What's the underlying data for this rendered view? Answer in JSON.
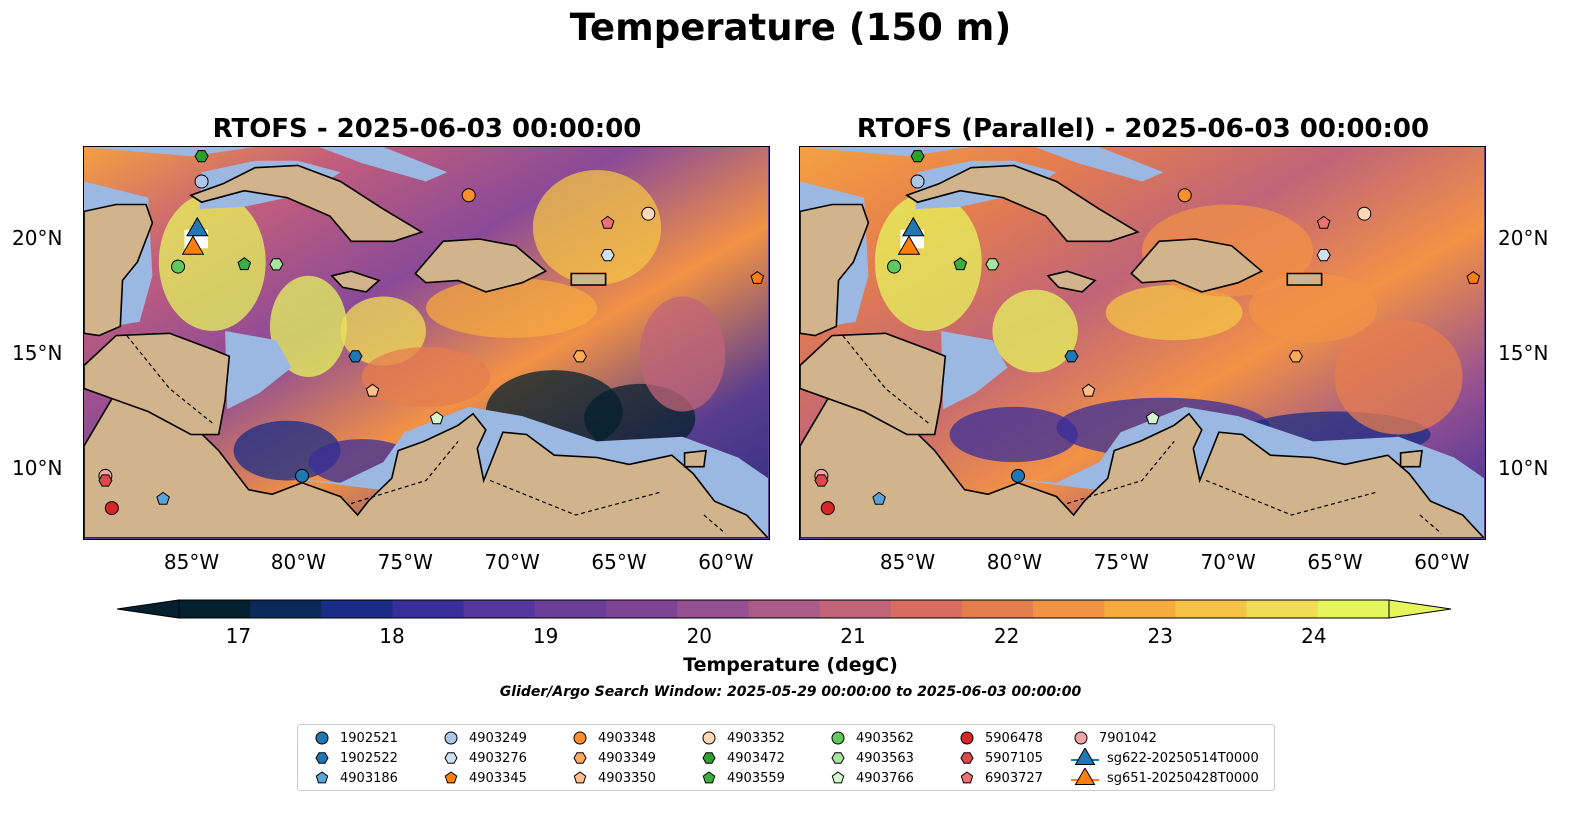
{
  "title": "Temperature (150 m)",
  "panels": [
    {
      "title": "RTOFS - 2025-06-03 00:00:00"
    },
    {
      "title": "RTOFS (Parallel) - 2025-06-03 00:00:00"
    }
  ],
  "map": {
    "lon_range": [
      -90,
      -58
    ],
    "lat_range": [
      7,
      24
    ],
    "x_ticks": [
      "85°W",
      "80°W",
      "75°W",
      "70°W",
      "65°W",
      "60°W"
    ],
    "y_ticks": [
      "20°N",
      "15°N",
      "10°N"
    ],
    "colors": {
      "land": "#d2b48c",
      "shallow": "#9bb8e2",
      "coast": "#000000"
    }
  },
  "colorbar": {
    "label": "Temperature (degC)",
    "ticks": [
      "17",
      "18",
      "19",
      "20",
      "21",
      "22",
      "23",
      "24"
    ],
    "range": [
      16.625,
      24.5
    ],
    "step": 0.5,
    "extend": "both",
    "colormap": "thermal"
  },
  "search_window": "Glider/Argo Search Window: 2025-05-29 00:00:00 to 2025-06-03 00:00:00",
  "legend": [
    {
      "label": "1902521",
      "marker": "circle",
      "color": "#1f77b4"
    },
    {
      "label": "1902522",
      "marker": "hexagon",
      "color": "#1f77b4"
    },
    {
      "label": "4903186",
      "marker": "pentagon",
      "color": "#5aa4d8"
    },
    {
      "label": "4903249",
      "marker": "circle",
      "color": "#aec7e8"
    },
    {
      "label": "4903276",
      "marker": "hexagon",
      "color": "#cfe0f5"
    },
    {
      "label": "4903345",
      "marker": "pentagon",
      "color": "#ff7f0e"
    },
    {
      "label": "4903348",
      "marker": "circle",
      "color": "#ff8f2a"
    },
    {
      "label": "4903349",
      "marker": "hexagon",
      "color": "#ffab5c"
    },
    {
      "label": "4903350",
      "marker": "pentagon",
      "color": "#ffc08a"
    },
    {
      "label": "4903352",
      "marker": "circle",
      "color": "#fdd9b5"
    },
    {
      "label": "4903472",
      "marker": "hexagon",
      "color": "#2ca02c"
    },
    {
      "label": "4903559",
      "marker": "pentagon",
      "color": "#3cb03c"
    },
    {
      "label": "4903562",
      "marker": "circle",
      "color": "#5ec95e"
    },
    {
      "label": "4903563",
      "marker": "hexagon",
      "color": "#a8e4a0"
    },
    {
      "label": "4903766",
      "marker": "pentagon",
      "color": "#d6f5d0"
    },
    {
      "label": "5906478",
      "marker": "circle",
      "color": "#d62728"
    },
    {
      "label": "5907105",
      "marker": "hexagon",
      "color": "#e04848"
    },
    {
      "label": "6903727",
      "marker": "pentagon",
      "color": "#f07070"
    },
    {
      "label": "7901042",
      "marker": "circle",
      "color": "#f4a6a6"
    },
    {
      "label": "sg622-20250514T0000",
      "marker": "triangle-line",
      "color": "#1f77b4"
    },
    {
      "label": "sg651-20250428T0000",
      "marker": "triangle-line",
      "color": "#ff7f0e"
    }
  ],
  "platforms": [
    {
      "id": "4903472",
      "lon": -84.5,
      "lat": 23.6
    },
    {
      "id": "4903249",
      "lon": -84.5,
      "lat": 22.5
    },
    {
      "id": "sg622-20250514T0000",
      "lon": -84.7,
      "lat": 20.4
    },
    {
      "id": "sg651-20250428T0000",
      "lon": -84.9,
      "lat": 19.6
    },
    {
      "id": "4903562",
      "lon": -85.6,
      "lat": 18.8
    },
    {
      "id": "4903559",
      "lon": -82.5,
      "lat": 18.9
    },
    {
      "id": "4903563",
      "lon": -81.0,
      "lat": 18.9
    },
    {
      "id": "4903348",
      "lon": -72.0,
      "lat": 21.9
    },
    {
      "id": "4903352",
      "lon": -63.6,
      "lat": 21.1
    },
    {
      "id": "6903727",
      "lon": -65.5,
      "lat": 20.7
    },
    {
      "id": "4903276",
      "lon": -65.5,
      "lat": 19.3
    },
    {
      "id": "4903345",
      "lon": -58.5,
      "lat": 18.3
    },
    {
      "id": "1902522",
      "lon": -77.3,
      "lat": 14.9
    },
    {
      "id": "4903349",
      "lon": -66.8,
      "lat": 14.9
    },
    {
      "id": "4903350",
      "lon": -76.5,
      "lat": 13.4
    },
    {
      "id": "4903766",
      "lon": -73.5,
      "lat": 12.2
    },
    {
      "id": "1902521",
      "lon": -79.8,
      "lat": 9.7
    },
    {
      "id": "7901042",
      "lon": -89.0,
      "lat": 9.7
    },
    {
      "id": "5907105",
      "lon": -89.0,
      "lat": 9.5
    },
    {
      "id": "4903186",
      "lon": -86.3,
      "lat": 8.7
    },
    {
      "id": "5906478",
      "lon": -88.7,
      "lat": 8.3
    }
  ]
}
